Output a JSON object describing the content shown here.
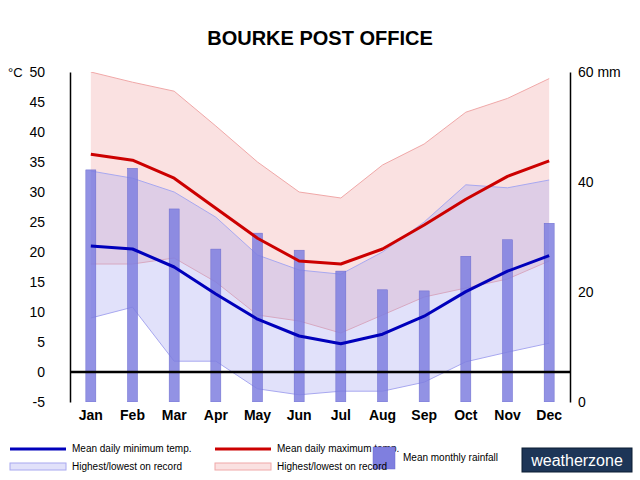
{
  "chart_data": {
    "type": "combo",
    "title": "BOURKE POST OFFICE",
    "ylabel": "°C",
    "categories": [
      "Jan",
      "Feb",
      "Mar",
      "Apr",
      "May",
      "Jun",
      "Jul",
      "Aug",
      "Sep",
      "Oct",
      "Nov",
      "Dec"
    ],
    "series": [
      {
        "name": "Mean daily minimum temp.",
        "type": "line",
        "color": "#0000bb",
        "values": [
          21,
          20.5,
          17.5,
          13,
          8.8,
          6,
          4.7,
          6.3,
          9.3,
          13.4,
          16.8,
          19.4
        ]
      },
      {
        "name": "Mean daily maximum temp.",
        "type": "line",
        "color": "#cc0000",
        "values": [
          36.3,
          35.3,
          32.3,
          27.3,
          22.3,
          18.5,
          18,
          20.5,
          24.5,
          28.8,
          32.6,
          35.2
        ]
      },
      {
        "name": "Mean monthly rainfall",
        "type": "bar",
        "color": "#7f7fdf",
        "axis": "y2",
        "values": [
          42.2,
          42.5,
          35.1,
          27.8,
          30.7,
          27.6,
          23.8,
          20.4,
          20.2,
          26.5,
          29.5,
          32.5
        ]
      },
      {
        "name": "Highest/lowest on record",
        "type": "band",
        "color": "#a8a8f0",
        "values": [
          33.5,
          32.3,
          30,
          25.8,
          19.5,
          17,
          16.3,
          20,
          25,
          31.2,
          30.7,
          32
        ],
        "low": [
          9,
          10.8,
          1.8,
          1.8,
          -2.8,
          -3.8,
          -3.2,
          -3.2,
          -1.7,
          1.7,
          3.3,
          4.8
        ]
      },
      {
        "name": "Highest/lowest on record",
        "type": "band",
        "color": "#f0a8a8",
        "values": [
          50,
          48.3,
          46.8,
          41,
          35,
          30,
          29,
          34.5,
          38,
          43.3,
          45.6,
          48.9
        ],
        "low": [
          18,
          18,
          19,
          15,
          9.5,
          8.5,
          6.5,
          9.5,
          12.5,
          14,
          15.5,
          18.5
        ]
      }
    ],
    "ylim": [
      -5,
      50
    ],
    "yticks": [
      -5,
      0,
      5,
      10,
      15,
      20,
      25,
      30,
      35,
      40,
      45,
      50
    ],
    "y2lim": [
      0,
      60
    ],
    "y2ticks": [
      0,
      20,
      40,
      {
        "value": 60,
        "label": "60 mm"
      }
    ],
    "grid": false,
    "legend": "bottom",
    "annotations": [
      "weatherzone"
    ]
  }
}
